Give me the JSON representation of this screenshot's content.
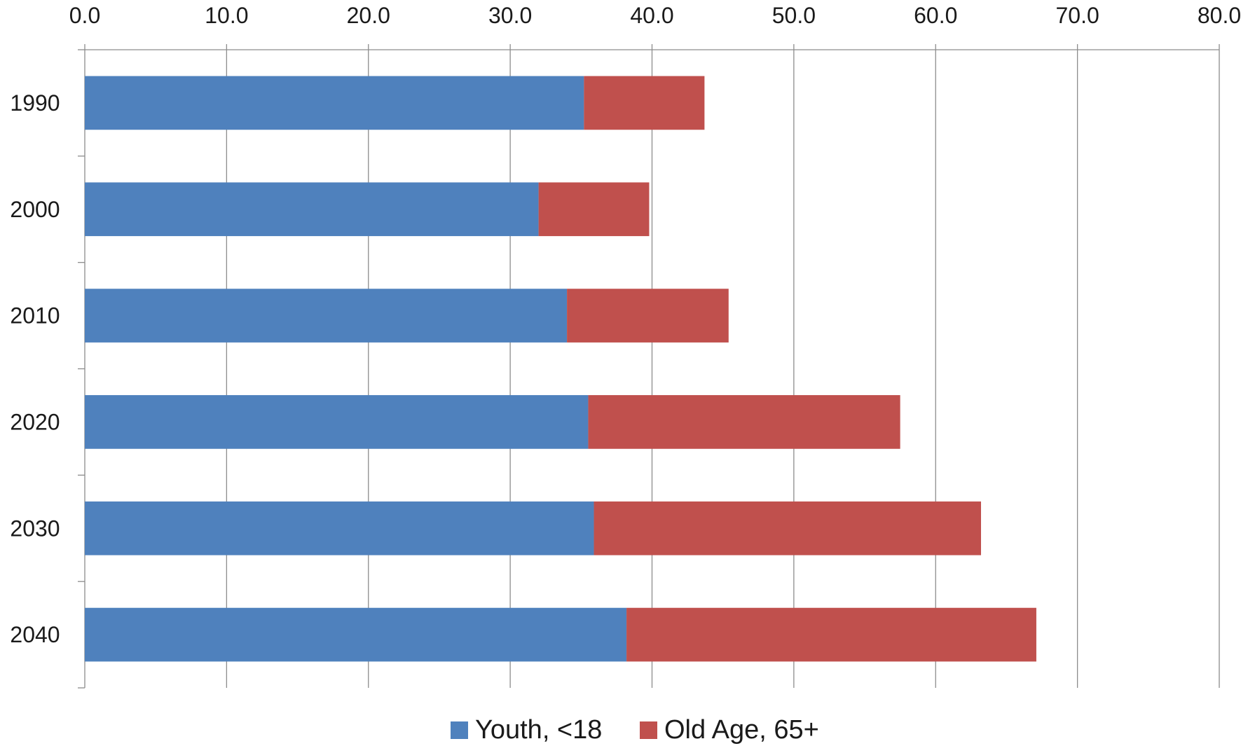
{
  "chart_data": {
    "type": "bar",
    "orientation": "horizontal",
    "stacked": true,
    "categories": [
      "1990",
      "2000",
      "2010",
      "2020",
      "2030",
      "2040"
    ],
    "series": [
      {
        "name": "Youth, <18",
        "color": "#4f81bd",
        "values": [
          35.2,
          32.0,
          34.0,
          35.5,
          35.9,
          38.2
        ]
      },
      {
        "name": "Old Age, 65+",
        "color": "#c0504d",
        "values": [
          8.5,
          7.8,
          11.4,
          22.0,
          27.3,
          28.9
        ]
      }
    ],
    "x_ticks": [
      "0.0",
      "10.0",
      "20.0",
      "30.0",
      "40.0",
      "50.0",
      "60.0",
      "70.0",
      "80.0"
    ],
    "xlim": [
      0,
      80
    ],
    "x_axis_position": "top",
    "grid": "vertical",
    "legend": {
      "position": "bottom",
      "items": [
        "Youth, <18",
        "Old Age, 65+"
      ]
    }
  }
}
